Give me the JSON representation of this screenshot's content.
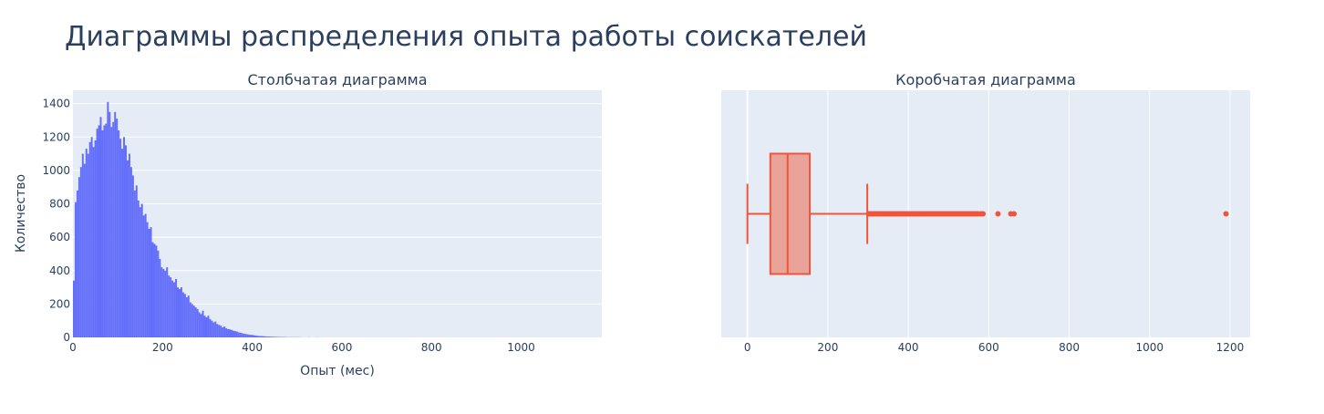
{
  "title": "Диаграммы распределения опыта работы соискателей",
  "colors": {
    "plot_bg": "#e5ecf6",
    "grid": "#ffffff",
    "hist": "#636efa",
    "box": "#ef553b",
    "box_fill": "#eaa399",
    "text": "#2a3f5f"
  },
  "chart_data": [
    {
      "type": "histogram",
      "title": "Столбчатая диаграмма",
      "xlabel": "Опыт (мес)",
      "ylabel": "Количество",
      "xlim": [
        0,
        1180
      ],
      "ylim": [
        0,
        1480
      ],
      "xticks": [
        0,
        200,
        400,
        600,
        800,
        1000
      ],
      "yticks": [
        0,
        200,
        400,
        600,
        800,
        1000,
        1200,
        1400
      ],
      "bin_width": 4,
      "bins_start": 0,
      "values": [
        340,
        810,
        880,
        960,
        1020,
        1100,
        1040,
        1130,
        1100,
        1170,
        1200,
        1140,
        1180,
        1250,
        1270,
        1320,
        1240,
        1270,
        1280,
        1410,
        1350,
        1260,
        1290,
        1350,
        1310,
        1240,
        1190,
        1130,
        1200,
        1150,
        1060,
        1100,
        1020,
        970,
        880,
        910,
        820,
        780,
        800,
        730,
        740,
        690,
        650,
        660,
        570,
        560,
        550,
        520,
        470,
        420,
        410,
        400,
        420,
        370,
        360,
        340,
        330,
        350,
        300,
        290,
        300,
        270,
        260,
        240,
        250,
        210,
        200,
        190,
        180,
        170,
        150,
        140,
        160,
        130,
        120,
        130,
        110,
        100,
        90,
        95,
        80,
        75,
        70,
        60,
        65,
        55,
        50,
        48,
        45,
        40,
        38,
        35,
        30,
        28,
        25,
        22,
        20,
        18,
        16,
        15,
        14,
        12,
        10,
        9,
        8,
        8,
        7,
        6,
        5,
        5,
        4,
        4,
        3,
        3,
        3,
        2,
        2,
        2,
        2,
        1,
        1,
        1,
        1,
        1,
        1,
        1,
        1,
        0,
        0,
        0,
        0,
        1,
        0,
        0,
        0,
        0,
        1
      ]
    },
    {
      "type": "box",
      "title": "Коробчатая диаграмма",
      "xlim": [
        -65,
        1250
      ],
      "xticks": [
        0,
        200,
        400,
        600,
        800,
        1000,
        1200
      ],
      "lower_fence": 0,
      "q1": 57,
      "median": 100,
      "q3": 155,
      "upper_fence": 298,
      "outliers": [
        302,
        306,
        310,
        314,
        318,
        322,
        326,
        330,
        334,
        338,
        342,
        346,
        350,
        354,
        358,
        362,
        366,
        370,
        374,
        378,
        382,
        386,
        390,
        394,
        398,
        402,
        406,
        410,
        414,
        418,
        422,
        426,
        430,
        434,
        438,
        442,
        446,
        450,
        454,
        458,
        462,
        466,
        470,
        474,
        478,
        482,
        486,
        490,
        494,
        498,
        502,
        506,
        510,
        514,
        518,
        522,
        526,
        530,
        534,
        538,
        542,
        546,
        550,
        554,
        558,
        562,
        566,
        570,
        574,
        580,
        586,
        623,
        655,
        663,
        1190
      ]
    }
  ]
}
